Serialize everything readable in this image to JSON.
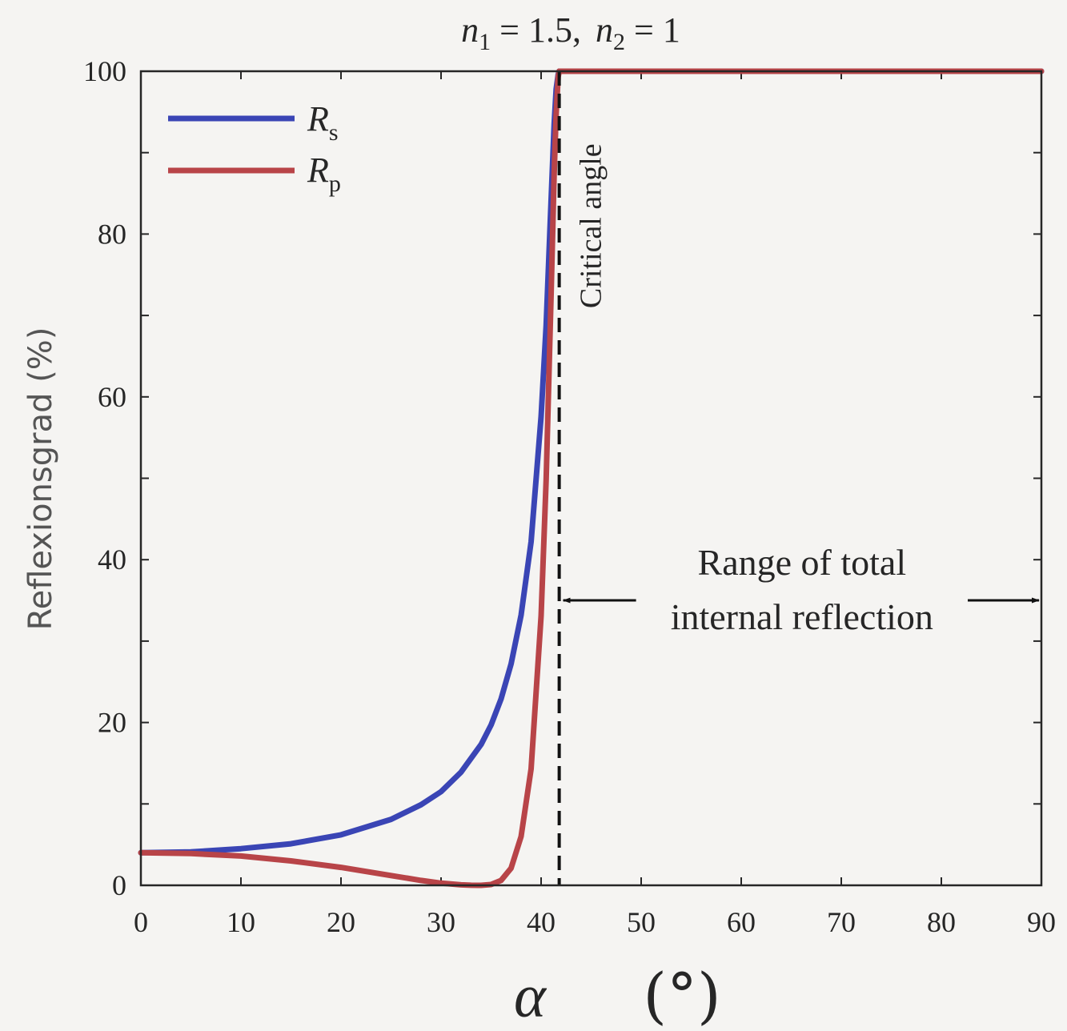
{
  "chart_data": {
    "type": "line",
    "title_parts": {
      "n1_symbol": "n",
      "n1_sub": "1",
      "n1_value": " = 1.5,",
      "n2_symbol": "n",
      "n2_sub": "2",
      "n2_value": " = 1"
    },
    "xlabel_symbol": "α",
    "xlabel_unit": "(°)",
    "ylabel": "Reflexionsgrad (%)",
    "xlim": [
      0,
      90
    ],
    "ylim": [
      0,
      100
    ],
    "x_ticks": [
      "0",
      "10",
      "20",
      "30",
      "40",
      "50",
      "60",
      "70",
      "80",
      "90"
    ],
    "y_ticks": [
      "0",
      "20",
      "40",
      "60",
      "80",
      "100"
    ],
    "legend_position": "top-left",
    "series": [
      {
        "name_symbol": "R",
        "name_sub": "s",
        "color": "#3a45b5",
        "x": [
          0,
          5,
          10,
          15,
          20,
          25,
          28,
          30,
          32,
          34,
          35,
          36,
          37,
          38,
          39,
          40,
          40.5,
          41,
          41.3,
          41.5,
          41.7,
          41.81,
          45,
          50,
          60,
          70,
          80,
          90
        ],
        "y": [
          4.0,
          4.1,
          4.5,
          5.1,
          6.2,
          8.1,
          9.9,
          11.5,
          13.9,
          17.3,
          19.7,
          22.9,
          27.2,
          33.2,
          42.2,
          57.6,
          68.8,
          84.2,
          93.5,
          97.8,
          99.6,
          100,
          100,
          100,
          100,
          100,
          100,
          100
        ]
      },
      {
        "name_symbol": "R",
        "name_sub": "p",
        "color": "#b84448",
        "x": [
          0,
          5,
          10,
          15,
          20,
          25,
          28,
          30,
          32,
          33,
          33.7,
          34,
          35,
          36,
          37,
          38,
          39,
          40,
          40.5,
          41,
          41.3,
          41.5,
          41.7,
          41.81,
          45,
          50,
          60,
          70,
          80,
          90
        ],
        "y": [
          4.0,
          3.9,
          3.6,
          3.0,
          2.2,
          1.2,
          0.6,
          0.27,
          0.06,
          0.01,
          0.0,
          0.003,
          0.1,
          0.6,
          2.1,
          6.0,
          14.3,
          33.1,
          49.8,
          72.6,
          87.4,
          94.7,
          99.3,
          100,
          100,
          100,
          100,
          100,
          100,
          100
        ]
      }
    ],
    "annotations": {
      "critical_angle_x": 41.81,
      "critical_angle_label": "Critical angle",
      "tir_range_y": 35,
      "tir_range_line1": "Range of total",
      "tir_range_line2": "internal reflection"
    }
  }
}
